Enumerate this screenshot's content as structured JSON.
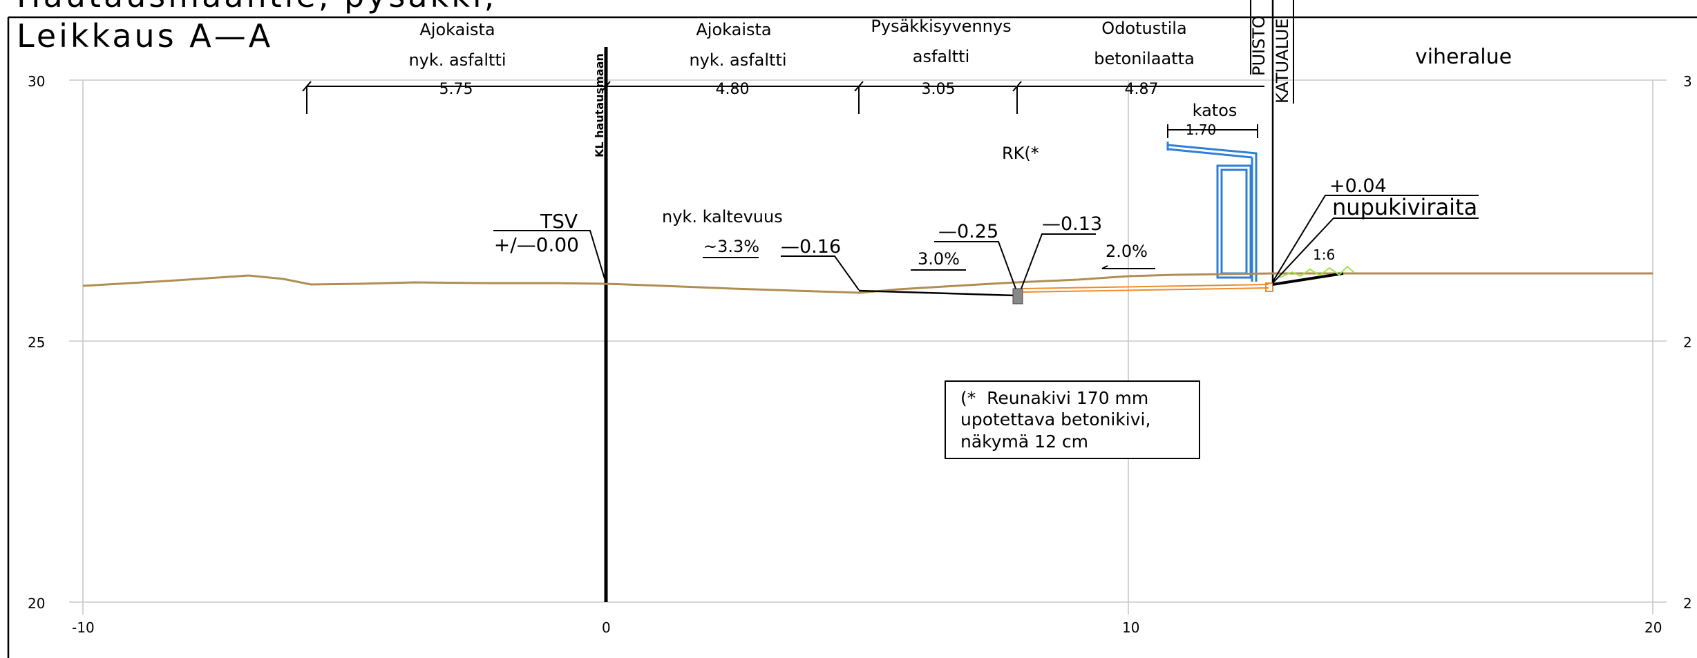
{
  "titles": {
    "line1": "Hautausmaantie, pysäkki,",
    "line2": "Leikkaus A—A"
  },
  "zones": [
    {
      "line1": "Ajokaista",
      "line2": "nyk. asfaltti"
    },
    {
      "line1": "Ajokaista",
      "line2": "nyk. asfaltti"
    },
    {
      "line1": "Pysäkkisyvennys",
      "line2": "asfaltti"
    },
    {
      "line1": "Odotustila",
      "line2": "betonilaatta"
    },
    {
      "line1": "viheralue",
      "line2": ""
    }
  ],
  "vertical_labels": {
    "puisto": "PUISTO",
    "katualue": "KATUALUE",
    "kl": "KL hautausmaan"
  },
  "dimensions": [
    "5.75",
    "4.80",
    "3.05",
    "4.87"
  ],
  "shelter": {
    "title": "katos",
    "width": "1.70"
  },
  "rk_label": "RK(*",
  "annotations": {
    "tsv": "TSV",
    "tsv_value": "+/—0.00",
    "slope_title": "nyk. kaltevuus",
    "slope_existing": "~3.3%",
    "level_a": "—0.16",
    "level_b": "—0.25",
    "level_c": "—0.13",
    "slope_a": "3.0%",
    "slope_b": "2.0%",
    "level_d": "+0.04",
    "paving": "nupukiviraita",
    "ratio": "1:6"
  },
  "note": {
    "line1": "(*  Reunakivi 170 mm",
    "line2": "upotettava betonikivi,",
    "line3": "näkymä 12 cm"
  },
  "axes": {
    "x_ticks": [
      "-10",
      "0",
      "10",
      "20"
    ],
    "y_ticks_left": [
      "30",
      "25",
      "20"
    ],
    "y_ticks_right": [
      "3",
      "2",
      "2"
    ]
  },
  "colors": {
    "ground": "#b08d52",
    "structure": "#2e7fd6",
    "curb": "#f08a28",
    "green": "#9ce44a",
    "grid": "#c8c8c8"
  }
}
